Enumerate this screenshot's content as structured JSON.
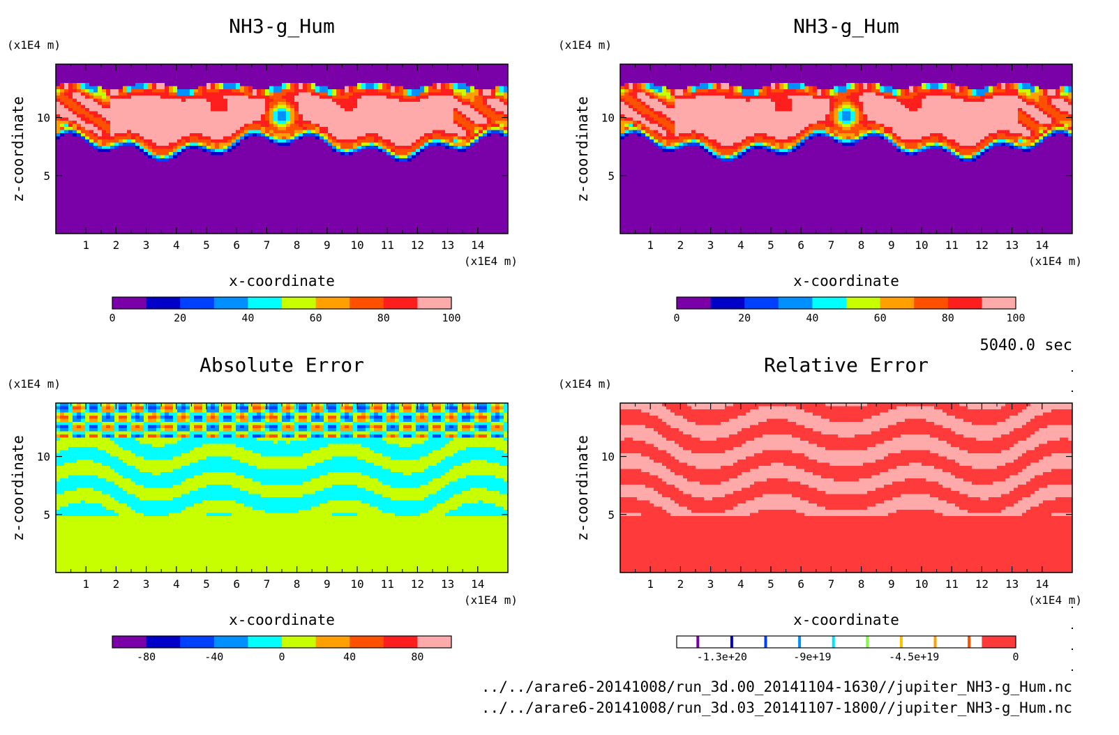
{
  "time_label": "5040.0 sec",
  "footer": {
    "line1": "../../arare6-20141008/run_3d.00_20141104-1630//jupiter_NH3-g_Hum.nc",
    "line2": "../../arare6-20141008/run_3d.03_20141107-1800//jupiter_NH3-g_Hum.nc"
  },
  "chart_data": [
    {
      "type": "heatmap",
      "title": "NH3-g_Hum",
      "xlabel": "x-coordinate",
      "ylabel": "z-coordinate",
      "x_unit": "(x1E4 m)",
      "y_unit": "(x1E4 m)",
      "xlim": [
        0,
        15
      ],
      "ylim": [
        0,
        14.6
      ],
      "x_ticks": [
        "1",
        "2",
        "3",
        "4",
        "5",
        "6",
        "7",
        "8",
        "9",
        "10",
        "11",
        "12",
        "13",
        "14"
      ],
      "y_ticks": [
        {
          "value": 5,
          "label": "5"
        },
        {
          "value": 10,
          "label": "10"
        }
      ],
      "colorbar": {
        "colors": [
          "#7a00a8",
          "#0000c8",
          "#0040ff",
          "#0090ff",
          "#00ffff",
          "#c8ff00",
          "#ffa000",
          "#ff5000",
          "#ff1e1e",
          "#ffaaaa"
        ],
        "labels": [
          {
            "value": 0,
            "label": "0"
          },
          {
            "value": 20,
            "label": "20"
          },
          {
            "value": 40,
            "label": "40"
          },
          {
            "value": 60,
            "label": "60"
          },
          {
            "value": 80,
            "label": "80"
          },
          {
            "value": 100,
            "label": "100"
          }
        ],
        "min": 0,
        "max": 100
      },
      "field": "humidity"
    },
    {
      "type": "heatmap",
      "title": "NH3-g_Hum",
      "xlabel": "x-coordinate",
      "ylabel": "z-coordinate",
      "x_unit": "(x1E4 m)",
      "y_unit": "(x1E4 m)",
      "xlim": [
        0,
        15
      ],
      "ylim": [
        0,
        14.6
      ],
      "x_ticks": [
        "1",
        "2",
        "3",
        "4",
        "5",
        "6",
        "7",
        "8",
        "9",
        "10",
        "11",
        "12",
        "13",
        "14"
      ],
      "y_ticks": [
        {
          "value": 5,
          "label": "5"
        },
        {
          "value": 10,
          "label": "10"
        }
      ],
      "colorbar": {
        "colors": [
          "#7a00a8",
          "#0000c8",
          "#0040ff",
          "#0090ff",
          "#00ffff",
          "#c8ff00",
          "#ffa000",
          "#ff5000",
          "#ff1e1e",
          "#ffaaaa"
        ],
        "labels": [
          {
            "value": 0,
            "label": "0"
          },
          {
            "value": 20,
            "label": "20"
          },
          {
            "value": 40,
            "label": "40"
          },
          {
            "value": 60,
            "label": "60"
          },
          {
            "value": 80,
            "label": "80"
          },
          {
            "value": 100,
            "label": "100"
          }
        ],
        "min": 0,
        "max": 100
      },
      "field": "humidity"
    },
    {
      "type": "heatmap",
      "title": "Absolute Error",
      "xlabel": "x-coordinate",
      "ylabel": "z-coordinate",
      "x_unit": "(x1E4 m)",
      "y_unit": "(x1E4 m)",
      "xlim": [
        0,
        15
      ],
      "ylim": [
        0,
        14.6
      ],
      "x_ticks": [
        "1",
        "2",
        "3",
        "4",
        "5",
        "6",
        "7",
        "8",
        "9",
        "10",
        "11",
        "12",
        "13",
        "14"
      ],
      "y_ticks": [
        {
          "value": 5,
          "label": "5"
        },
        {
          "value": 10,
          "label": "10"
        }
      ],
      "colorbar": {
        "colors": [
          "#7a00a8",
          "#0000c8",
          "#0040ff",
          "#0090ff",
          "#00ffff",
          "#c8ff00",
          "#ffa000",
          "#ff5000",
          "#ff1e1e",
          "#ffaaaa"
        ],
        "labels": [
          {
            "value": -80,
            "label": "-80"
          },
          {
            "value": -40,
            "label": "-40"
          },
          {
            "value": 0,
            "label": "0"
          },
          {
            "value": 40,
            "label": "40"
          },
          {
            "value": 80,
            "label": "80"
          }
        ],
        "min": -100,
        "max": 100
      },
      "field": "abs_error"
    },
    {
      "type": "heatmap",
      "title": "Relative Error",
      "xlabel": "x-coordinate",
      "ylabel": "z-coordinate",
      "x_unit": "(x1E4 m)",
      "y_unit": "(x1E4 m)",
      "xlim": [
        0,
        15
      ],
      "ylim": [
        0,
        14.6
      ],
      "x_ticks": [
        "1",
        "2",
        "3",
        "4",
        "5",
        "6",
        "7",
        "8",
        "9",
        "10",
        "11",
        "12",
        "13",
        "14"
      ],
      "y_ticks": [
        {
          "value": 5,
          "label": "5"
        },
        {
          "value": 10,
          "label": "10"
        }
      ],
      "colorbar": {
        "colors": [
          "#ffffff",
          "#ffffff",
          "#ffffff",
          "#ffffff",
          "#ffffff",
          "#ffffff",
          "#ffffff",
          "#ffffff",
          "#ffffff",
          "#ff3a3a"
        ],
        "stripes": [
          "#7a00a8",
          "#0000c8",
          "#0040ff",
          "#0090ff",
          "#00e0ff",
          "#80ff40",
          "#ffc000",
          "#ffa000",
          "#ff5000"
        ],
        "labels": [
          {
            "value": -1.3e+20,
            "label": "-1.3e+20"
          },
          {
            "value": -9e+19,
            "label": "-9e+19"
          },
          {
            "value": -4.5e+19,
            "label": "-4.5e+19"
          },
          {
            "value": 0,
            "label": "0"
          }
        ],
        "min": -1.5e+20,
        "max": 0
      },
      "field": "rel_error"
    }
  ]
}
